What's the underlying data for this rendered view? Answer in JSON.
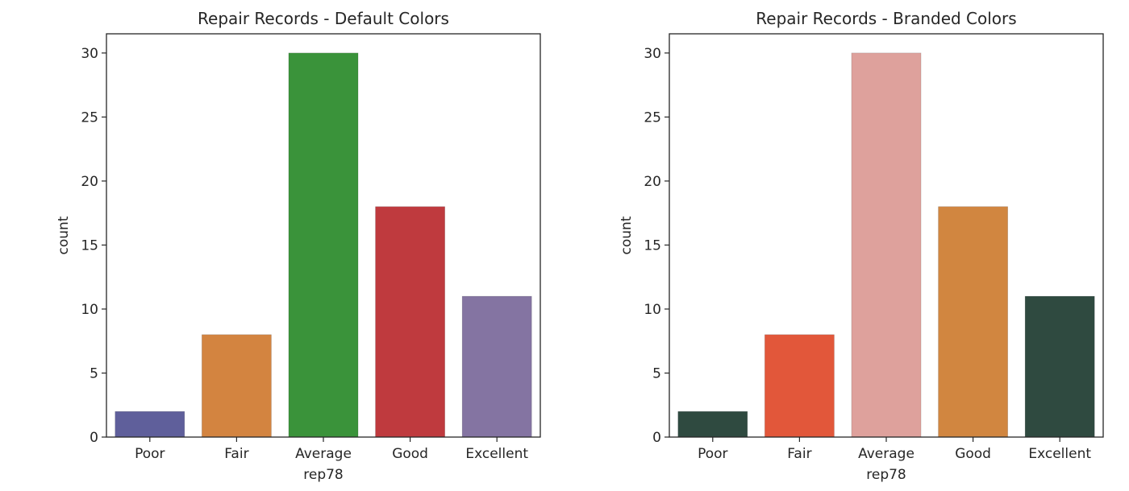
{
  "chart_data": [
    {
      "type": "bar",
      "title": "Repair Records - Default Colors",
      "xlabel": "rep78",
      "ylabel": "count",
      "categories": [
        "Poor",
        "Fair",
        "Average",
        "Good",
        "Excellent"
      ],
      "values": [
        2,
        8,
        30,
        18,
        11
      ],
      "colors": [
        "#5f5f9b",
        "#d38440",
        "#3a933a",
        "#bf3a3e",
        "#8474a2"
      ],
      "ylim": [
        0,
        31.5
      ],
      "yticks": [
        0,
        5,
        10,
        15,
        20,
        25,
        30
      ],
      "grid": false
    },
    {
      "type": "bar",
      "title": "Repair Records - Branded Colors",
      "xlabel": "rep78",
      "ylabel": "count",
      "categories": [
        "Poor",
        "Fair",
        "Average",
        "Good",
        "Excellent"
      ],
      "values": [
        2,
        8,
        30,
        18,
        11
      ],
      "colors": [
        "#2f4a40",
        "#e2573a",
        "#dea19c",
        "#d18640",
        "#2f4a40"
      ],
      "ylim": [
        0,
        31.5
      ],
      "yticks": [
        0,
        5,
        10,
        15,
        20,
        25,
        30
      ],
      "grid": false
    }
  ]
}
